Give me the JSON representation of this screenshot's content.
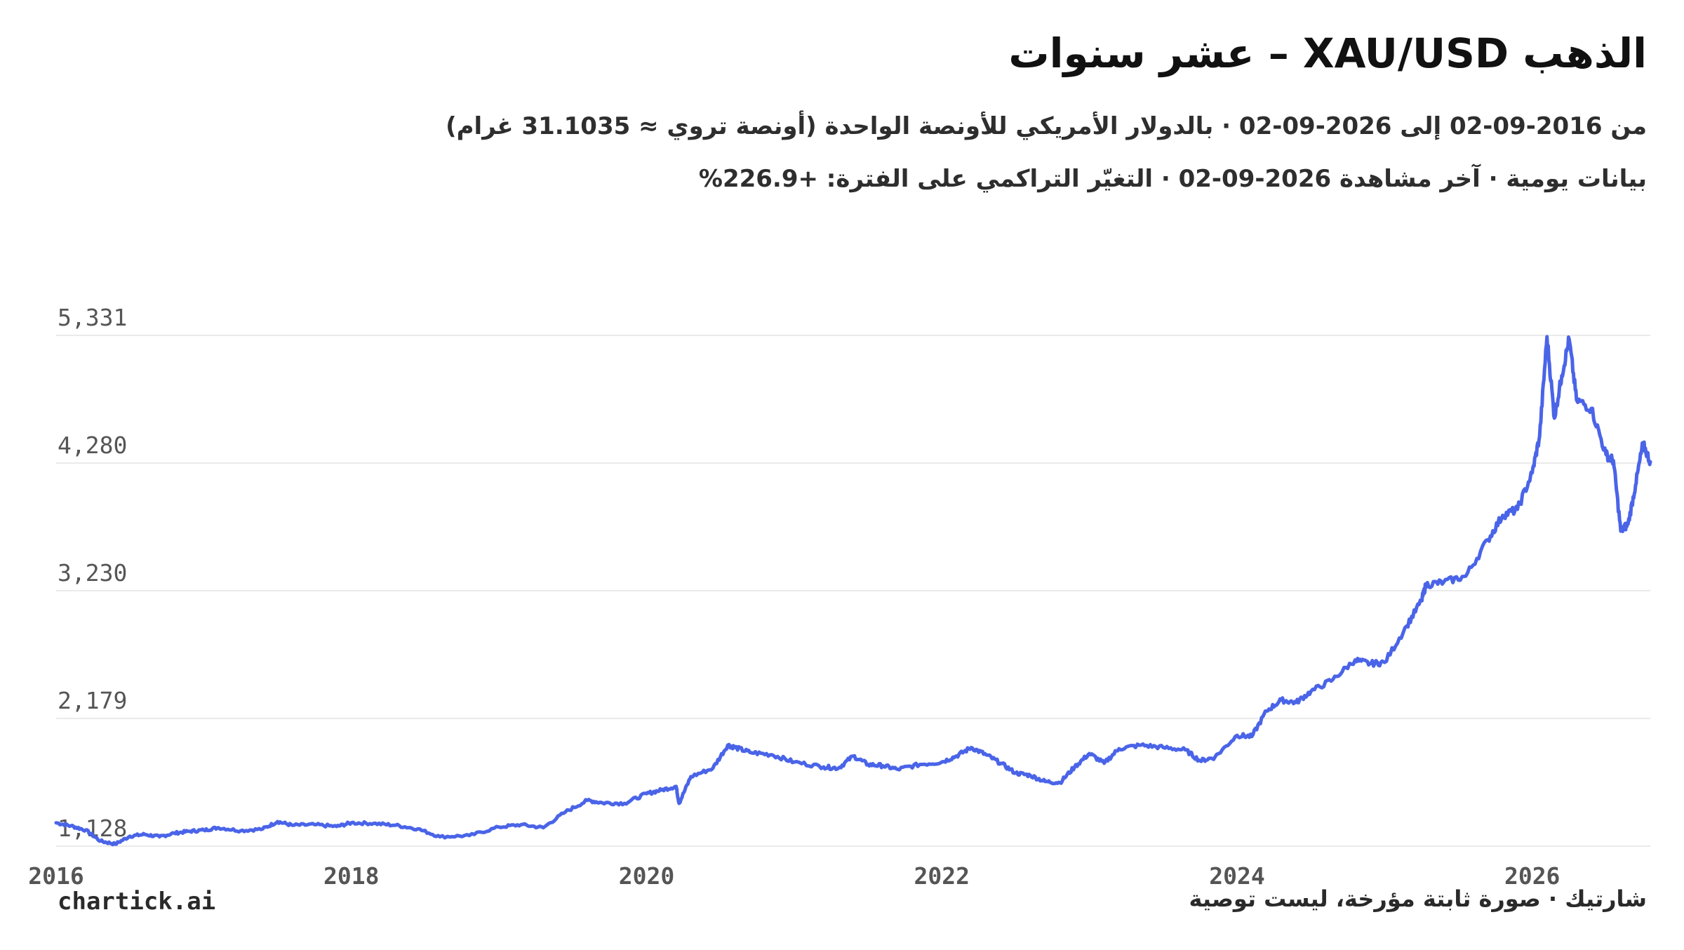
{
  "header": {
    "title": "الذهب XAU/USD – عشر سنوات",
    "subtitle_line1": "من 2016-09-02 إلى 2026-09-02 · بالدولار الأمريكي للأونصة الواحدة (أونصة تروي ≈ 31.1035 غرام)",
    "subtitle_line2": "بيانات يومية · آخر مشاهدة 2026-09-02 · التغيّر التراكمي على الفترة: +226.9%"
  },
  "footer": {
    "brand": "chartick.ai",
    "note": "شارتيك · صورة ثابتة مؤرخة، ليست توصية"
  },
  "colors": {
    "line": "#4a64e8",
    "grid": "#e3e3e3",
    "tick_text": "#555555"
  },
  "chart_data": {
    "type": "line",
    "title": "الذهب XAU/USD – عشر سنوات",
    "xlabel": "",
    "ylabel": "",
    "xlim": [
      2016.0,
      2026.8
    ],
    "ylim": [
      1128,
      5331
    ],
    "y_ticks": [
      {
        "value": 5331,
        "label": "5,331"
      },
      {
        "value": 4280,
        "label": "4,280"
      },
      {
        "value": 3230,
        "label": "3,230"
      },
      {
        "value": 2179,
        "label": "2,179"
      },
      {
        "value": 1128,
        "label": "1,128"
      }
    ],
    "x_ticks": [
      {
        "value": 2016,
        "label": "2016"
      },
      {
        "value": 2018,
        "label": "2018"
      },
      {
        "value": 2020,
        "label": "2020"
      },
      {
        "value": 2022,
        "label": "2022"
      },
      {
        "value": 2024,
        "label": "2024"
      },
      {
        "value": 2026,
        "label": "2026"
      }
    ],
    "grid": true,
    "legend": "none",
    "series": [
      {
        "x": [
          2016.0,
          2016.1,
          2016.2,
          2016.3,
          2016.4,
          2016.5,
          2016.6,
          2016.7,
          2016.8,
          2016.9,
          2017.0,
          2017.1,
          2017.25,
          2017.4,
          2017.5,
          2017.6,
          2017.75,
          2017.9,
          2018.0,
          2018.15,
          2018.3,
          2018.45,
          2018.6,
          2018.8,
          2019.0,
          2019.15,
          2019.3,
          2019.45,
          2019.6,
          2019.7,
          2019.85,
          2020.0,
          2020.1,
          2020.2,
          2020.22,
          2020.3,
          2020.45,
          2020.55,
          2020.6,
          2020.7,
          2020.85,
          2021.0,
          2021.2,
          2021.3,
          2021.4,
          2021.5,
          2021.6,
          2021.7,
          2021.85,
          2022.0,
          2022.1,
          2022.2,
          2022.3,
          2022.4,
          2022.5,
          2022.6,
          2022.7,
          2022.8,
          2022.9,
          2023.0,
          2023.1,
          2023.2,
          2023.35,
          2023.5,
          2023.65,
          2023.75,
          2023.85,
          2024.0,
          2024.1,
          2024.2,
          2024.3,
          2024.4,
          2024.5,
          2024.65,
          2024.8,
          2024.9,
          2025.0,
          2025.15,
          2025.25,
          2025.28,
          2025.4,
          2025.55,
          2025.7,
          2025.8,
          2025.9,
          2026.0,
          2026.05,
          2026.1,
          2026.15,
          2026.2,
          2026.25,
          2026.3,
          2026.4,
          2026.5,
          2026.55,
          2026.6,
          2026.65,
          2026.7,
          2026.75,
          2026.8
        ],
        "y": [
          1320,
          1295,
          1260,
          1170,
          1145,
          1210,
          1225,
          1205,
          1235,
          1250,
          1260,
          1280,
          1255,
          1270,
          1330,
          1300,
          1305,
          1290,
          1320,
          1315,
          1300,
          1270,
          1205,
          1215,
          1285,
          1305,
          1280,
          1410,
          1505,
          1485,
          1480,
          1560,
          1590,
          1620,
          1480,
          1700,
          1770,
          1960,
          1940,
          1900,
          1880,
          1820,
          1780,
          1770,
          1870,
          1800,
          1790,
          1760,
          1800,
          1820,
          1870,
          1940,
          1880,
          1810,
          1730,
          1710,
          1660,
          1650,
          1780,
          1890,
          1810,
          1930,
          1960,
          1940,
          1920,
          1830,
          1860,
          2040,
          2030,
          2240,
          2330,
          2310,
          2400,
          2500,
          2660,
          2630,
          2640,
          2940,
          3150,
          3280,
          3300,
          3350,
          3650,
          3850,
          3900,
          4200,
          4500,
          5320,
          4650,
          5000,
          5300,
          4800,
          4730,
          4350,
          4300,
          3720,
          3780,
          4100,
          4440,
          4290
        ]
      }
    ]
  }
}
